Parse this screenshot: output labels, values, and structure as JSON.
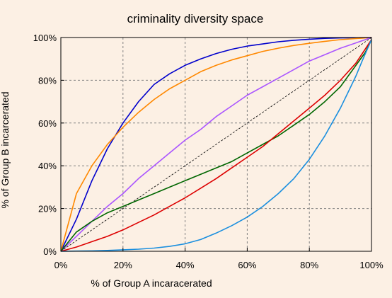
{
  "chart_data": {
    "type": "line",
    "title": "criminality diversity space",
    "xlabel": "% of Group A incaracerated",
    "ylabel": "% of Group B incarcerated",
    "xlim": [
      0,
      100
    ],
    "ylim": [
      0,
      100
    ],
    "x_ticks": [
      0,
      20,
      40,
      60,
      80,
      100
    ],
    "x_tick_labels": [
      "0%",
      "20%",
      "40%",
      "60%",
      "80%",
      "100%"
    ],
    "y_ticks": [
      0,
      20,
      40,
      60,
      80,
      100
    ],
    "y_tick_labels": [
      "0%",
      "20%",
      "40%",
      "60%",
      "80%",
      "100%"
    ],
    "grid": true,
    "background_color": "#fcf0e4",
    "series": [
      {
        "color": "#0000cc",
        "x": [
          0,
          5,
          10,
          15,
          20,
          25,
          30,
          35,
          40,
          45,
          50,
          55,
          60,
          65,
          70,
          75,
          80,
          85,
          90,
          95,
          100
        ],
        "y": [
          0,
          15,
          33,
          48,
          60,
          70,
          78,
          83,
          87,
          90,
          92.5,
          94.5,
          96,
          97,
          98,
          98.7,
          99.2,
          99.6,
          99.8,
          99.9,
          100
        ]
      },
      {
        "color": "#ff8800",
        "x": [
          0,
          5,
          10,
          15,
          20,
          25,
          30,
          35,
          40,
          45,
          50,
          55,
          60,
          65,
          70,
          75,
          80,
          85,
          90,
          95,
          100
        ],
        "y": [
          0,
          27,
          40,
          50,
          58,
          65,
          71,
          76,
          80,
          84,
          87,
          89.5,
          91.5,
          93.5,
          95,
          96.3,
          97.3,
          98.2,
          99,
          99.5,
          100
        ]
      },
      {
        "color": "#aa55ff",
        "x": [
          0,
          5,
          10,
          15,
          20,
          25,
          30,
          35,
          40,
          45,
          50,
          55,
          60,
          65,
          70,
          75,
          80,
          85,
          90,
          95,
          100
        ],
        "y": [
          0,
          7,
          14,
          21,
          27,
          34,
          40,
          46,
          52,
          57,
          63,
          68,
          73,
          77,
          81,
          85,
          89,
          92,
          95,
          97.5,
          100
        ]
      },
      {
        "color": "#000000",
        "dashed": true,
        "x": [
          0,
          100
        ],
        "y": [
          0,
          100
        ]
      },
      {
        "color": "#006600",
        "x": [
          0,
          5,
          10,
          15,
          20,
          25,
          30,
          35,
          40,
          45,
          50,
          55,
          60,
          65,
          70,
          75,
          80,
          85,
          90,
          95,
          98,
          100
        ],
        "y": [
          0,
          9,
          14,
          18,
          21,
          24,
          27,
          30,
          33,
          36,
          39,
          42,
          46,
          50,
          54,
          59,
          64,
          70,
          77,
          87,
          93,
          99
        ]
      },
      {
        "color": "#dd0000",
        "x": [
          0,
          5,
          10,
          15,
          20,
          25,
          30,
          35,
          40,
          45,
          50,
          55,
          60,
          65,
          70,
          75,
          80,
          85,
          90,
          95,
          100
        ],
        "y": [
          0,
          2,
          4.5,
          7,
          10,
          13.5,
          17,
          21,
          25,
          29.5,
          34,
          39,
          44,
          49,
          55,
          61,
          67,
          73,
          80,
          88,
          99
        ]
      },
      {
        "color": "#1a8fdf",
        "x": [
          0,
          5,
          10,
          15,
          20,
          25,
          30,
          35,
          40,
          45,
          50,
          55,
          60,
          65,
          70,
          75,
          80,
          85,
          90,
          93,
          95,
          97,
          100
        ],
        "y": [
          0,
          0.1,
          0.2,
          0.4,
          0.7,
          1,
          1.5,
          2.3,
          3.5,
          5.5,
          8.5,
          12,
          16,
          21,
          27,
          34,
          43,
          54,
          67,
          76,
          82,
          89,
          99
        ]
      }
    ]
  }
}
